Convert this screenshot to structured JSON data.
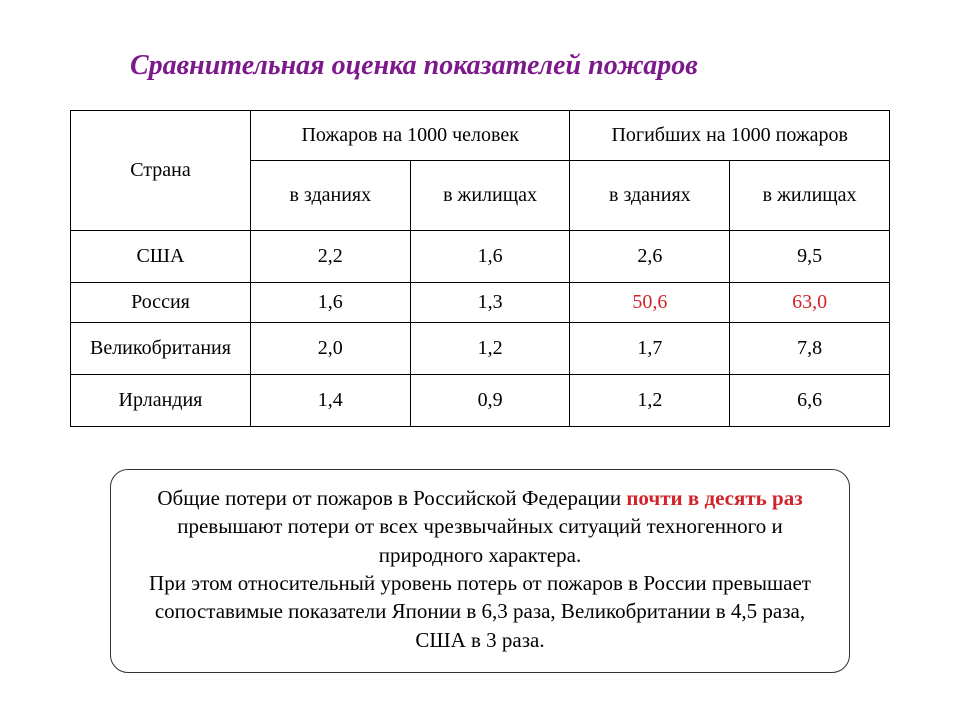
{
  "title": {
    "text": "Сравнительная оценка показателей пожаров",
    "color": "#7d1a8b"
  },
  "table": {
    "header": {
      "country": "Страна",
      "group1": "Пожаров на 1000 человек",
      "group2": "Погибших на 1000 пожаров",
      "sub_buildings": "в зданиях",
      "sub_dwellings": "в жилищах"
    },
    "highlight_color": "#d2232a",
    "rows": [
      {
        "country": "США",
        "c1": "2,2",
        "c2": "1,6",
        "c3": "2,6",
        "c4": "9,5",
        "h3": false,
        "h4": false,
        "tall": true
      },
      {
        "country": "Россия",
        "c1": "1,6",
        "c2": "1,3",
        "c3": "50,6",
        "c4": "63,0",
        "h3": true,
        "h4": true,
        "tall": false
      },
      {
        "country": "Великобритания",
        "c1": "2,0",
        "c2": "1,2",
        "c3": "1,7",
        "c4": "7,8",
        "h3": false,
        "h4": false,
        "tall": true
      },
      {
        "country": "Ирландия",
        "c1": "1,4",
        "c2": "0,9",
        "c3": "1,2",
        "c4": "6,6",
        "h3": false,
        "h4": false,
        "tall": true
      }
    ]
  },
  "note": {
    "em_color": "#d2232a",
    "p1_a": "Общие потери от пожаров в Российской Федерации ",
    "p1_em": "почти в десять раз",
    "p1_b": " превышают потери от всех чрезвычайных ситуаций техногенного и природного характера.",
    "p2": "При этом относительный уровень потерь от пожаров в России превышает сопоставимые показатели Японии в 6,3 раза, Великобритании в 4,5 раза, США в 3 раза."
  }
}
